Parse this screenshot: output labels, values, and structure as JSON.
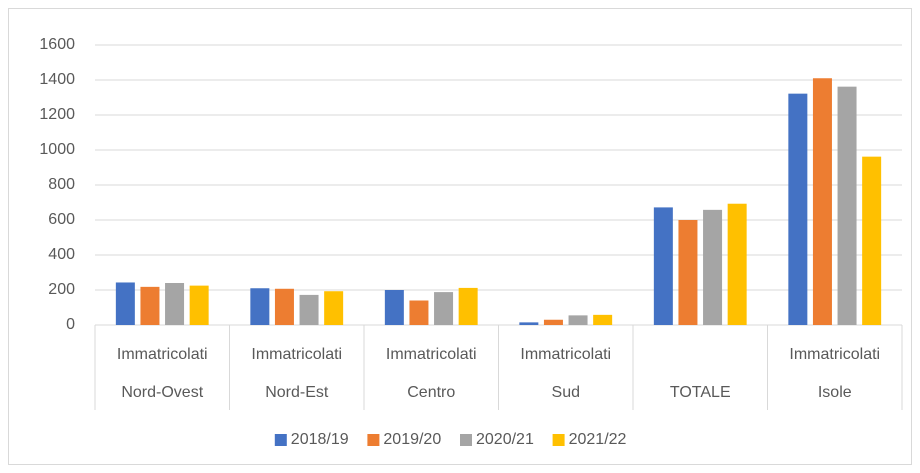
{
  "chart_data": {
    "type": "bar",
    "categories": [
      "Nord-Ovest",
      "Nord-Est",
      "Centro",
      "Sud",
      "TOTALE",
      "Isole"
    ],
    "subcategories": [
      "Immatricolati",
      "Immatricolati",
      "Immatricolati",
      "Immatricolati",
      null,
      "Immatricolati"
    ],
    "series": [
      {
        "name": "2018/19",
        "color": "#4472c4",
        "values": [
          243,
          210,
          200,
          15,
          672,
          1322
        ]
      },
      {
        "name": "2019/20",
        "color": "#ed7d31",
        "values": [
          218,
          207,
          140,
          30,
          600,
          1410
        ]
      },
      {
        "name": "2020/21",
        "color": "#a5a5a5",
        "values": [
          240,
          172,
          188,
          55,
          658,
          1362
        ]
      },
      {
        "name": "2021/22",
        "color": "#ffc000",
        "values": [
          225,
          193,
          212,
          58,
          693,
          962
        ]
      }
    ],
    "ylim": [
      0,
      1600
    ],
    "yticks": [
      0,
      200,
      400,
      600,
      800,
      1000,
      1200,
      1400,
      1600
    ],
    "grid": true,
    "legend": "bottom"
  }
}
